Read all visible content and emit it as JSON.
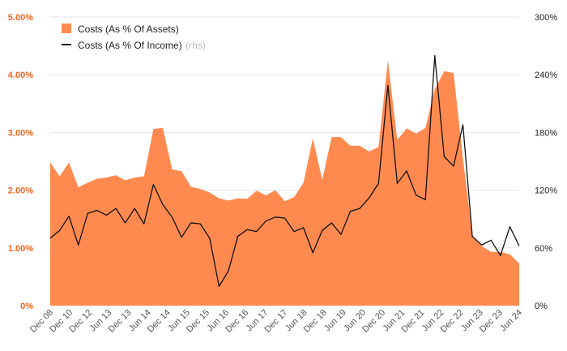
{
  "chart_data": {
    "type": "area",
    "x_labels": [
      "Dec 08",
      "Dec 10",
      "Dec 12",
      "Jun 13",
      "Dec 13",
      "Jun 14",
      "Dec 14",
      "Jun 15",
      "Dec 15",
      "Jun 16",
      "Dec 16",
      "Jun 17",
      "Dec 17",
      "Jun 18",
      "Dec 18",
      "Jun 19",
      "Jun 20",
      "Dec 20",
      "Jun 21",
      "Dec 21",
      "Jun 22",
      "Dec 22",
      "Jun 23",
      "Dec 23",
      "Jun 24"
    ],
    "left_axis": {
      "ticks": [
        "0%",
        "1.00%",
        "2.00%",
        "3.00%",
        "4.00%",
        "5.00%"
      ],
      "ylim": [
        0,
        5
      ]
    },
    "right_axis": {
      "ticks": [
        "0%",
        "60%",
        "120%",
        "180%",
        "240%",
        "300%"
      ],
      "ylim": [
        0,
        300
      ]
    },
    "series": [
      {
        "name": "Costs (As % Of Assets)",
        "axis": "left",
        "kind": "area",
        "values": [
          2.48,
          2.24,
          2.48,
          2.05,
          2.13,
          2.2,
          2.22,
          2.26,
          2.17,
          2.22,
          2.24,
          3.06,
          3.08,
          2.36,
          2.33,
          2.06,
          2.02,
          1.96,
          1.86,
          1.82,
          1.86,
          1.85,
          1.99,
          1.91,
          2.0,
          1.81,
          1.88,
          2.13,
          2.9,
          2.18,
          2.92,
          2.92,
          2.77,
          2.77,
          2.67,
          2.75,
          4.25,
          2.87,
          3.07,
          2.98,
          3.08,
          3.75,
          4.06,
          4.03,
          2.55,
          1.22,
          1.03,
          0.93,
          0.93,
          0.89,
          0.73
        ]
      },
      {
        "name": "Costs (As % Of Income)",
        "axis": "right",
        "kind": "line",
        "values": [
          70,
          78,
          93,
          63,
          96,
          99,
          94,
          101,
          86,
          101,
          85,
          126,
          105,
          92,
          71,
          86,
          85,
          70,
          20,
          36,
          72,
          79,
          77,
          88,
          92,
          91,
          77,
          81,
          55,
          78,
          86,
          74,
          98,
          101,
          112,
          127,
          229,
          127,
          140,
          115,
          110,
          260,
          155,
          145,
          188,
          72,
          63,
          68,
          52,
          82,
          62
        ]
      }
    ],
    "legend": [
      {
        "label": "Costs (As % Of Assets)",
        "color": "#ff8a50"
      },
      {
        "label": "Costs (As % Of Income)",
        "suffix": "(rhs)",
        "color": "#111111"
      }
    ],
    "colors": {
      "area": "#ff8a50",
      "line": "#111111",
      "left_axis_text": "#f26522",
      "grid": "#e6e6e6"
    }
  }
}
